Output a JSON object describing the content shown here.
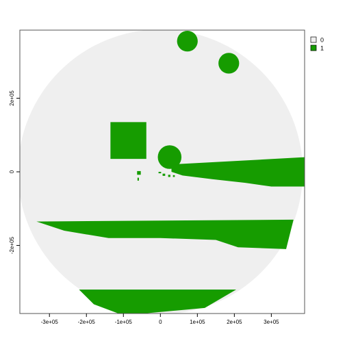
{
  "chart_data": {
    "type": "heatmap",
    "title": "",
    "xlabel": "",
    "ylabel": "",
    "xlim": [
      -380000,
      390000
    ],
    "ylim": [
      -385000,
      385000
    ],
    "x_ticks": [
      -300000,
      -200000,
      -100000,
      0,
      100000,
      200000,
      300000
    ],
    "x_tick_labels": [
      "-3e+05",
      "-2e+05",
      "-1e+05",
      "0",
      "1e+05",
      "2e+05",
      "3e+05"
    ],
    "y_ticks": [
      -200000,
      0,
      200000
    ],
    "y_tick_labels": [
      "-2e+05",
      "0",
      "2e+05"
    ],
    "legend_position": "right",
    "classes": [
      {
        "value": "0",
        "label": "0",
        "color": "#EFEFEF"
      },
      {
        "value": "1",
        "label": "1",
        "color": "#169C00"
      }
    ],
    "domain": {
      "shape": "circle",
      "center": [
        0,
        0
      ],
      "radius": 385000,
      "value": "0"
    },
    "regions_value_1": [
      {
        "name": "top-circle-a",
        "shape": "circle",
        "center": [
          73000,
          355000
        ],
        "radius": 28000
      },
      {
        "name": "top-circle-b",
        "shape": "circle",
        "center": [
          185000,
          295000
        ],
        "radius": 28000
      },
      {
        "name": "center-circle",
        "shape": "circle",
        "center": [
          25000,
          40000
        ],
        "radius": 32000
      },
      {
        "name": "square",
        "shape": "polygon",
        "points": [
          [
            -135000,
            135000
          ],
          [
            -38000,
            135000
          ],
          [
            -38000,
            35000
          ],
          [
            -135000,
            35000
          ]
        ]
      },
      {
        "name": "upper-band",
        "shape": "polygon",
        "points": [
          [
            30000,
            20000
          ],
          [
            395000,
            40000
          ],
          [
            395000,
            -40000
          ],
          [
            300000,
            -40000
          ],
          [
            230000,
            -30000
          ],
          [
            140000,
            -20000
          ],
          [
            60000,
            -10000
          ],
          [
            30000,
            0
          ]
        ]
      },
      {
        "name": "middle-band",
        "shape": "polygon",
        "points": [
          [
            -335000,
            -135000
          ],
          [
            360000,
            -130000
          ],
          [
            340000,
            -210000
          ],
          [
            210000,
            -205000
          ],
          [
            150000,
            -185000
          ],
          [
            0,
            -180000
          ],
          [
            -140000,
            -180000
          ],
          [
            -260000,
            -160000
          ]
        ]
      },
      {
        "name": "bottom-band",
        "shape": "polygon",
        "points": [
          [
            -220000,
            -320000
          ],
          [
            205000,
            -320000
          ],
          [
            120000,
            -370000
          ],
          [
            -100000,
            -390000
          ],
          [
            -180000,
            -360000
          ]
        ]
      },
      {
        "name": "speck-1",
        "shape": "polygon",
        "points": [
          [
            -63000,
            2000
          ],
          [
            -53000,
            2000
          ],
          [
            -53000,
            -8000
          ],
          [
            -63000,
            -8000
          ]
        ]
      },
      {
        "name": "speck-2",
        "shape": "polygon",
        "points": [
          [
            -62000,
            -16000
          ],
          [
            -58000,
            -16000
          ],
          [
            -58000,
            -24000
          ],
          [
            -62000,
            -24000
          ]
        ]
      },
      {
        "name": "speck-3",
        "shape": "polygon",
        "points": [
          [
            6000,
            -5000
          ],
          [
            13000,
            -5000
          ],
          [
            13000,
            -11000
          ],
          [
            6000,
            -11000
          ]
        ]
      },
      {
        "name": "speck-4",
        "shape": "polygon",
        "points": [
          [
            21000,
            -8000
          ],
          [
            27000,
            -8000
          ],
          [
            27000,
            -14000
          ],
          [
            21000,
            -14000
          ]
        ]
      },
      {
        "name": "speck-5",
        "shape": "polygon",
        "points": [
          [
            34000,
            -9000
          ],
          [
            39000,
            -9000
          ],
          [
            39000,
            -14000
          ],
          [
            34000,
            -14000
          ]
        ]
      },
      {
        "name": "speck-6",
        "shape": "polygon",
        "points": [
          [
            -5000,
            0
          ],
          [
            2000,
            0
          ],
          [
            2000,
            -4000
          ],
          [
            -5000,
            -4000
          ]
        ]
      }
    ]
  }
}
